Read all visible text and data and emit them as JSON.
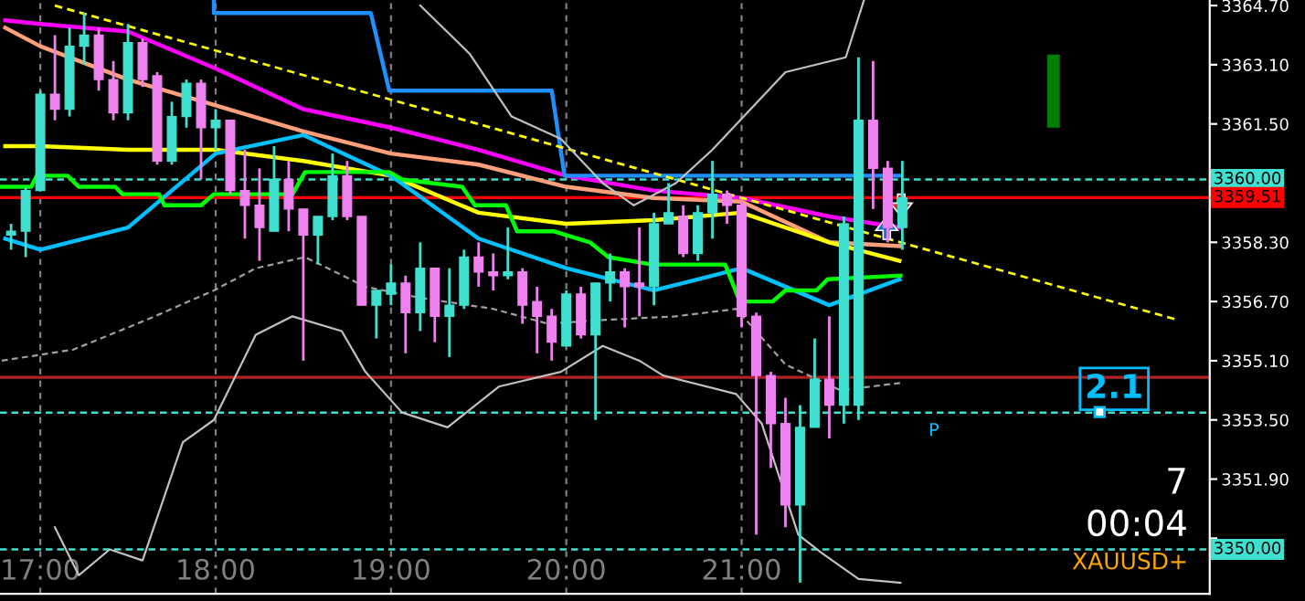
{
  "chart_data": {
    "type": "candlestick",
    "x": [
      16.8333,
      16.9167,
      17,
      17.0833,
      17.1667,
      17.25,
      17.3333,
      17.4167,
      17.5,
      17.5833,
      17.6667,
      17.75,
      17.8333,
      17.9167,
      18,
      18.0833,
      18.1667,
      18.25,
      18.3333,
      18.4167,
      18.5,
      18.5833,
      18.6667,
      18.75,
      18.8333,
      18.9167,
      19,
      19.0833,
      19.1667,
      19.25,
      19.3333,
      19.4167,
      19.5,
      19.5833,
      19.6667,
      19.75,
      19.8333,
      19.9167,
      20,
      20.0833,
      20.1667,
      20.25,
      20.3333,
      20.4167,
      20.5,
      20.5833,
      20.6667,
      20.75,
      20.8333,
      20.9167,
      21,
      21.0833,
      21.1667,
      21.25,
      21.3333,
      21.4167,
      21.5,
      21.5833,
      21.6667,
      21.75,
      21.8333,
      21.9167
    ],
    "ohlc": [
      [
        3358.5,
        3358.8,
        3358.1,
        3358.6
      ],
      [
        3358.6,
        3359.8,
        3357.9,
        3359.7
      ],
      [
        3359.7,
        3362.4,
        3359.7,
        3362.3
      ],
      [
        3362.3,
        3363.9,
        3361.6,
        3361.9
      ],
      [
        3361.9,
        3364.1,
        3361.7,
        3363.6
      ],
      [
        3363.6,
        3364.5,
        3363.1,
        3363.9
      ],
      [
        3363.9,
        3364.1,
        3362.4,
        3362.7
      ],
      [
        3362.7,
        3363.2,
        3361.6,
        3361.8
      ],
      [
        3361.8,
        3364.2,
        3361.6,
        3363.7
      ],
      [
        3363.7,
        3363.8,
        3362.5,
        3362.7
      ],
      [
        3362.8,
        3362.9,
        3360.4,
        3360.5
      ],
      [
        3360.5,
        3362.1,
        3360.4,
        3361.7
      ],
      [
        3361.7,
        3362.7,
        3361.4,
        3362.6
      ],
      [
        3362.6,
        3362.7,
        3360.0,
        3361.4
      ],
      [
        3361.4,
        3361.9,
        3360.8,
        3361.6
      ],
      [
        3361.6,
        3361.6,
        3359.6,
        3359.7
      ],
      [
        3359.7,
        3360.8,
        3358.4,
        3359.3
      ],
      [
        3359.3,
        3360.3,
        3357.8,
        3358.7
      ],
      [
        3358.6,
        3360.9,
        3358.6,
        3360.0
      ],
      [
        3360.0,
        3360.5,
        3358.6,
        3359.2
      ],
      [
        3359.2,
        3359.2,
        3355.1,
        3358.5
      ],
      [
        3358.5,
        3359.0,
        3357.7,
        3359.0
      ],
      [
        3359.0,
        3360.7,
        3358.9,
        3360.1
      ],
      [
        3360.1,
        3360.5,
        3358.9,
        3359.0
      ],
      [
        3359.0,
        3359.0,
        3356.6,
        3356.6
      ],
      [
        3356.6,
        3357.0,
        3355.7,
        3357.0
      ],
      [
        3356.9,
        3357.7,
        3356.6,
        3357.2
      ],
      [
        3357.2,
        3357.4,
        3355.3,
        3356.4
      ],
      [
        3356.4,
        3358.3,
        3355.9,
        3357.6
      ],
      [
        3357.6,
        3357.6,
        3355.6,
        3356.3
      ],
      [
        3356.3,
        3357.6,
        3355.2,
        3356.6
      ],
      [
        3356.6,
        3358.1,
        3356.5,
        3357.9
      ],
      [
        3357.9,
        3358.3,
        3357.1,
        3357.5
      ],
      [
        3357.5,
        3358.0,
        3357.0,
        3357.4
      ],
      [
        3357.4,
        3358.7,
        3357.3,
        3357.5
      ],
      [
        3357.5,
        3357.6,
        3356.1,
        3356.6
      ],
      [
        3356.7,
        3357.1,
        3355.3,
        3356.3
      ],
      [
        3356.3,
        3356.5,
        3355.1,
        3355.6
      ],
      [
        3355.5,
        3357.0,
        3355.5,
        3356.9
      ],
      [
        3356.9,
        3357.1,
        3355.7,
        3355.8
      ],
      [
        3355.8,
        3357.2,
        3353.5,
        3357.2
      ],
      [
        3357.2,
        3358.0,
        3356.7,
        3357.5
      ],
      [
        3357.5,
        3357.6,
        3356.0,
        3357.1
      ],
      [
        3357.2,
        3358.7,
        3356.3,
        3357.1
      ],
      [
        3357.1,
        3359.1,
        3356.6,
        3358.8
      ],
      [
        3358.8,
        3359.9,
        3358.8,
        3359.1
      ],
      [
        3359.0,
        3359.3,
        3357.9,
        3358.0
      ],
      [
        3358.0,
        3359.3,
        3357.8,
        3359.1
      ],
      [
        3359.1,
        3360.5,
        3358.4,
        3359.6
      ],
      [
        3359.6,
        3359.7,
        3358.8,
        3359.3
      ],
      [
        3359.3,
        3359.4,
        3356.0,
        3356.3
      ],
      [
        3356.3,
        3356.4,
        3350.4,
        3354.7
      ],
      [
        3354.7,
        3354.8,
        3352.2,
        3353.4
      ],
      [
        3353.4,
        3354.1,
        3350.6,
        3351.2
      ],
      [
        3351.2,
        3353.9,
        3349.1,
        3353.3
      ],
      [
        3353.3,
        3355.7,
        3353.3,
        3354.6
      ],
      [
        3354.6,
        3356.3,
        3353.0,
        3353.9
      ],
      [
        3353.9,
        3359.0,
        3353.4,
        3358.8
      ],
      [
        3353.9,
        3363.3,
        3353.5,
        3361.6
      ],
      [
        3361.6,
        3363.2,
        3359.2,
        3360.3
      ],
      [
        3360.3,
        3360.5,
        3358.3,
        3358.7
      ],
      [
        3358.7,
        3360.5,
        3358.1,
        3359.5
      ]
    ],
    "colors": [
      "#40e0d0",
      "#40e0d0",
      "#40e0d0",
      "#ee82ee",
      "#40e0d0",
      "#40e0d0",
      "#ee82ee",
      "#ee82ee",
      "#40e0d0",
      "#ee82ee",
      "#ee82ee",
      "#40e0d0",
      "#40e0d0",
      "#ee82ee",
      "#40e0d0",
      "#ee82ee",
      "#ee82ee",
      "#ee82ee",
      "#40e0d0",
      "#ee82ee",
      "#ee82ee",
      "#40e0d0",
      "#40e0d0",
      "#ee82ee",
      "#ee82ee",
      "#40e0d0",
      "#40e0d0",
      "#ee82ee",
      "#40e0d0",
      "#ee82ee",
      "#40e0d0",
      "#40e0d0",
      "#ee82ee",
      "#ee82ee",
      "#40e0d0",
      "#ee82ee",
      "#ee82ee",
      "#ee82ee",
      "#40e0d0",
      "#ee82ee",
      "#40e0d0",
      "#40e0d0",
      "#ee82ee",
      "#ee82ee",
      "#40e0d0",
      "#40e0d0",
      "#ee82ee",
      "#40e0d0",
      "#40e0d0",
      "#ee82ee",
      "#ee82ee",
      "#ee82ee",
      "#ee82ee",
      "#ee82ee",
      "#40e0d0",
      "#40e0d0",
      "#ee82ee",
      "#40e0d0",
      "#40e0d0",
      "#ee82ee",
      "#ee82ee",
      "#40e0d0"
    ],
    "series": [
      {
        "type": "line",
        "color": "#ff00ff",
        "x": [
          16.8,
          17,
          17.5,
          18,
          18.5,
          19,
          19.5,
          20,
          20.5,
          21,
          21.5,
          21.9
        ],
        "values": [
          3364.3,
          3364.2,
          3364.0,
          3363.0,
          3361.9,
          3361.4,
          3360.8,
          3360.1,
          3359.7,
          3359.5,
          3359.0,
          3358.7
        ]
      },
      {
        "type": "line",
        "color": "#ffa07a",
        "x": [
          16.8,
          17,
          17.5,
          18,
          18.5,
          19,
          19.5,
          20,
          20.5,
          21,
          21.5,
          21.9
        ],
        "values": [
          3364.1,
          3363.6,
          3362.7,
          3362.0,
          3361.3,
          3360.7,
          3360.4,
          3359.8,
          3359.5,
          3359.4,
          3358.3,
          3358.2
        ]
      },
      {
        "type": "line",
        "color": "#ffff00",
        "x": [
          16.8,
          17,
          17.5,
          18,
          18.5,
          19,
          19.5,
          20,
          20.5,
          21,
          21.5,
          21.9
        ],
        "values": [
          3360.9,
          3360.9,
          3360.8,
          3360.8,
          3360.5,
          3360.1,
          3359.1,
          3358.8,
          3358.9,
          3359.1,
          3358.3,
          3357.8
        ]
      },
      {
        "type": "line",
        "color": "#00bfff",
        "x": [
          16.8,
          17,
          17.5,
          18,
          18.5,
          19,
          19.5,
          20,
          20.5,
          21,
          21.5,
          21.9
        ],
        "values": [
          3358.4,
          3358.1,
          3358.7,
          3360.7,
          3361.2,
          3360.1,
          3358.4,
          3357.6,
          3357.0,
          3357.6,
          3356.6,
          3357.3
        ]
      },
      {
        "type": "line",
        "color": "#00ff00",
        "x": [
          16.78,
          16.948,
          16.979,
          17.156,
          17.219,
          17.427,
          17.469,
          17.677,
          17.708,
          17.917,
          17.99,
          18.438,
          18.51,
          18.99,
          19.063,
          19.406,
          19.479,
          19.656,
          19.719,
          19.927,
          20.135,
          20.24,
          20.49,
          20.906,
          20.99,
          21.177,
          21.25,
          21.427,
          21.49,
          21.906
        ],
        "values": [
          3359.8,
          3359.8,
          3360.1,
          3360.1,
          3359.8,
          3359.8,
          3359.6,
          3359.6,
          3359.3,
          3359.3,
          3359.6,
          3359.6,
          3360.2,
          3360.2,
          3360.0,
          3359.8,
          3359.3,
          3359.3,
          3358.6,
          3358.6,
          3358.3,
          3357.9,
          3357.7,
          3357.7,
          3356.7,
          3356.7,
          3357.0,
          3357.0,
          3357.3,
          3357.4
        ]
      },
      {
        "type": "line",
        "color": "#1e90ff",
        "x": [
          17.99,
          17.99,
          18.885,
          18.99,
          19.917,
          19.99,
          21.906
        ],
        "values": [
          3364.85,
          3364.5,
          3364.5,
          3362.4,
          3362.4,
          3360.1,
          3360.1
        ]
      },
      {
        "type": "line",
        "color": "#ffff00",
        "line_style": "dashed",
        "x": [
          17.083,
          23.49
        ],
        "values": [
          3364.7,
          3356.2
        ]
      },
      {
        "type": "line",
        "color": "#c0c0c0",
        "x": [
          19.167,
          19.448,
          19.688,
          19.969,
          20.208,
          20.385,
          20.625,
          20.833,
          21.25,
          21.594,
          21.698
        ],
        "values": [
          3364.7,
          3363.4,
          3361.7,
          3361.1,
          3359.9,
          3359.3,
          3359.9,
          3360.8,
          3362.9,
          3363.3,
          3364.85
        ]
      },
      {
        "type": "line",
        "color": "#c0c0c0",
        "x": [
          17.083,
          17.219,
          17.396,
          17.583,
          17.813,
          17.99,
          18.229,
          18.438,
          18.719,
          18.854,
          19.063,
          19.323,
          19.615,
          19.969,
          20.208,
          20.417,
          20.552,
          20.969,
          21.115,
          21.323,
          21.458,
          21.667,
          21.906
        ],
        "values": [
          3350.6,
          3349.3,
          3350.0,
          3349.7,
          3352.9,
          3353.5,
          3355.8,
          3356.3,
          3355.9,
          3354.8,
          3353.7,
          3353.3,
          3354.4,
          3354.8,
          3355.5,
          3355.1,
          3354.7,
          3354.2,
          3353.4,
          3350.4,
          3349.9,
          3349.2,
          3349.1
        ]
      },
      {
        "type": "line",
        "color": "#a0a0a0",
        "line_style": "dashed",
        "x": [
          16.78,
          17.188,
          17.604,
          17.99,
          18.229,
          18.51,
          18.854,
          19.167,
          19.583,
          19.896,
          20.208,
          20.625,
          20.969,
          21.25,
          21.563,
          21.906
        ],
        "values": [
          3355.1,
          3355.4,
          3356.2,
          3357.0,
          3357.6,
          3357.9,
          3357.1,
          3356.8,
          3356.5,
          3356.1,
          3356.2,
          3356.3,
          3356.5,
          3355.0,
          3354.3,
          3354.5
        ]
      }
    ],
    "xlim": [
      16.77,
      23.67
    ],
    "xticks": [
      {
        "value": 17,
        "label": "17:00"
      },
      {
        "value": 18,
        "label": "18:00"
      },
      {
        "value": 19,
        "label": "19:00"
      },
      {
        "value": 20,
        "label": "20:00"
      },
      {
        "value": 21,
        "label": "21:00"
      }
    ],
    "ylim": [
      3348.8,
      3364.85
    ],
    "yticks": [
      {
        "value": 3364.7,
        "label": "3364.70"
      },
      {
        "value": 3363.1,
        "label": "3363.10"
      },
      {
        "value": 3361.5,
        "label": "3361.50"
      },
      {
        "value": 3358.3,
        "label": "3358.30"
      },
      {
        "value": 3356.7,
        "label": "3356.70"
      },
      {
        "value": 3355.1,
        "label": "3355.10"
      },
      {
        "value": 3353.5,
        "label": "3353.50"
      },
      {
        "value": 3351.9,
        "label": "3351.90"
      },
      {
        "value": 3350.3,
        "label": null
      }
    ],
    "ref_lines": [
      {
        "axis": "y",
        "value": 3360.0,
        "label": "3360.00",
        "color": "#40e0d0",
        "line_style": "dashed"
      },
      {
        "axis": "y",
        "value": 3359.51,
        "label": "3359.51",
        "color": "#ff0000",
        "line_style": "solid"
      },
      {
        "axis": "y",
        "value": 3354.65,
        "color": "#b22222",
        "line_style": "solid"
      },
      {
        "axis": "y",
        "value": 3353.7,
        "color": "#40e0d0",
        "line_style": "dashed"
      },
      {
        "axis": "y",
        "value": 3350.0,
        "label": "3350.00",
        "color": "#40e0d0",
        "line_style": "dashed"
      }
    ],
    "annotations": [
      "2.1",
      "P",
      "7",
      "00:04",
      "XAUUSD+"
    ],
    "grid": "x"
  }
}
